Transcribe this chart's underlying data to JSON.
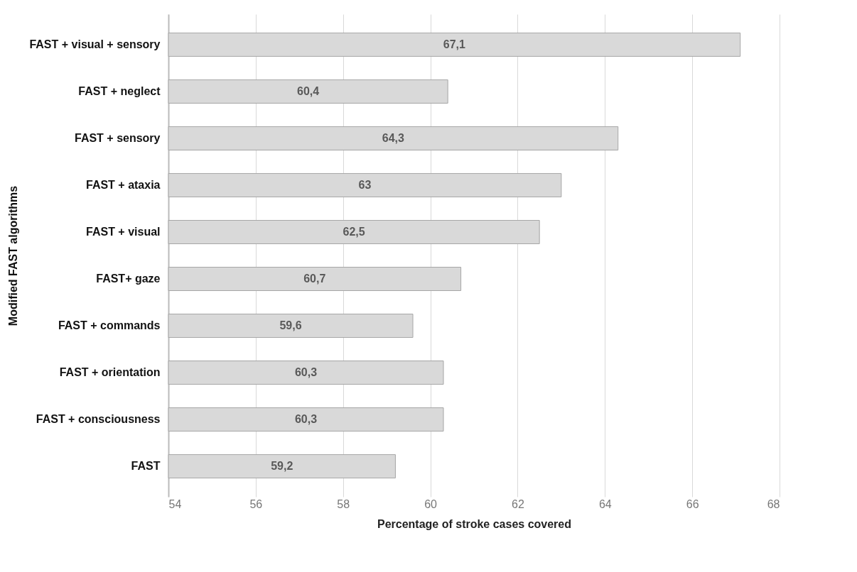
{
  "chart_data": {
    "type": "bar",
    "orientation": "horizontal",
    "xlabel": "Percentage of stroke cases covered",
    "ylabel": "Modified FAST algorithms",
    "categories": [
      "FAST + visual + sensory",
      "FAST + neglect",
      "FAST + sensory",
      "FAST + ataxia",
      "FAST + visual",
      "FAST+ gaze",
      "FAST + commands",
      "FAST + orientation",
      "FAST + consciousness",
      "FAST"
    ],
    "values": [
      67.1,
      60.4,
      64.3,
      63,
      62.5,
      60.7,
      59.6,
      60.3,
      60.3,
      59.2
    ],
    "value_labels": [
      "67,1",
      "60,4",
      "64,3",
      "63",
      "62,5",
      "60,7",
      "59,6",
      "60,3",
      "60,3",
      "59,2"
    ],
    "color": "#d9d9d9",
    "xlim": [
      54,
      68
    ],
    "xticks": [
      54,
      56,
      58,
      60,
      62,
      64,
      66,
      68
    ],
    "grid": "x"
  }
}
